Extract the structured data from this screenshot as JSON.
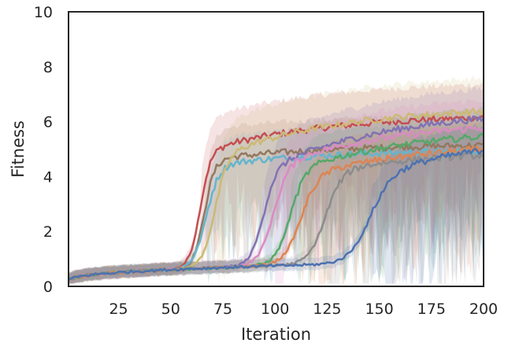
{
  "chart_data": {
    "type": "line",
    "title": "",
    "xlabel": "Iteration",
    "ylabel": "Fitness",
    "xlim": [
      1,
      200
    ],
    "ylim": [
      0,
      10
    ],
    "xticks": [
      25,
      50,
      75,
      100,
      125,
      150,
      175,
      200
    ],
    "yticks": [
      0,
      2,
      4,
      6,
      8,
      10
    ],
    "grid": false,
    "legend": "none",
    "shaded_band": "yes",
    "series": [
      {
        "color": "#c44e52",
        "rise": 64,
        "width": 2.5,
        "plateau": 4.9,
        "final": 6.3,
        "band_up": 1.2,
        "band_down": 1.1
      },
      {
        "color": "#937860",
        "rise": 66,
        "width": 2.5,
        "plateau": 4.6,
        "final": 5.2,
        "band_up": 1.1,
        "band_down": 1.2
      },
      {
        "color": "#64b5cd",
        "rise": 67,
        "width": 3.0,
        "plateau": 4.4,
        "final": 5.0,
        "band_up": 1.0,
        "band_down": 1.3
      },
      {
        "color": "#ccb974",
        "rise": 71,
        "width": 3.0,
        "plateau": 4.7,
        "final": 6.6,
        "band_up": 1.2,
        "band_down": 1.2
      },
      {
        "color": "#8172b3",
        "rise": 94,
        "width": 3.0,
        "plateau": 4.2,
        "final": 6.5,
        "band_up": 1.1,
        "band_down": 1.3
      },
      {
        "color": "#da8bc3",
        "rise": 99,
        "width": 3.5,
        "plateau": 4.4,
        "final": 6.1,
        "band_up": 1.0,
        "band_down": 1.3
      },
      {
        "color": "#55a868",
        "rise": 107,
        "width": 3.5,
        "plateau": 4.2,
        "final": 5.8,
        "band_up": 1.0,
        "band_down": 1.4
      },
      {
        "color": "#dd8452",
        "rise": 112,
        "width": 4.0,
        "plateau": 4.0,
        "final": 5.3,
        "band_up": 1.0,
        "band_down": 1.4
      },
      {
        "color": "#8c8c8c",
        "rise": 124,
        "width": 4.0,
        "plateau": 4.2,
        "final": 5.0,
        "band_up": 1.0,
        "band_down": 1.6
      },
      {
        "color": "#4c72b0",
        "rise": 145,
        "width": 5.0,
        "plateau": 4.0,
        "final": 5.6,
        "band_up": 0.9,
        "band_down": 1.6
      }
    ]
  }
}
